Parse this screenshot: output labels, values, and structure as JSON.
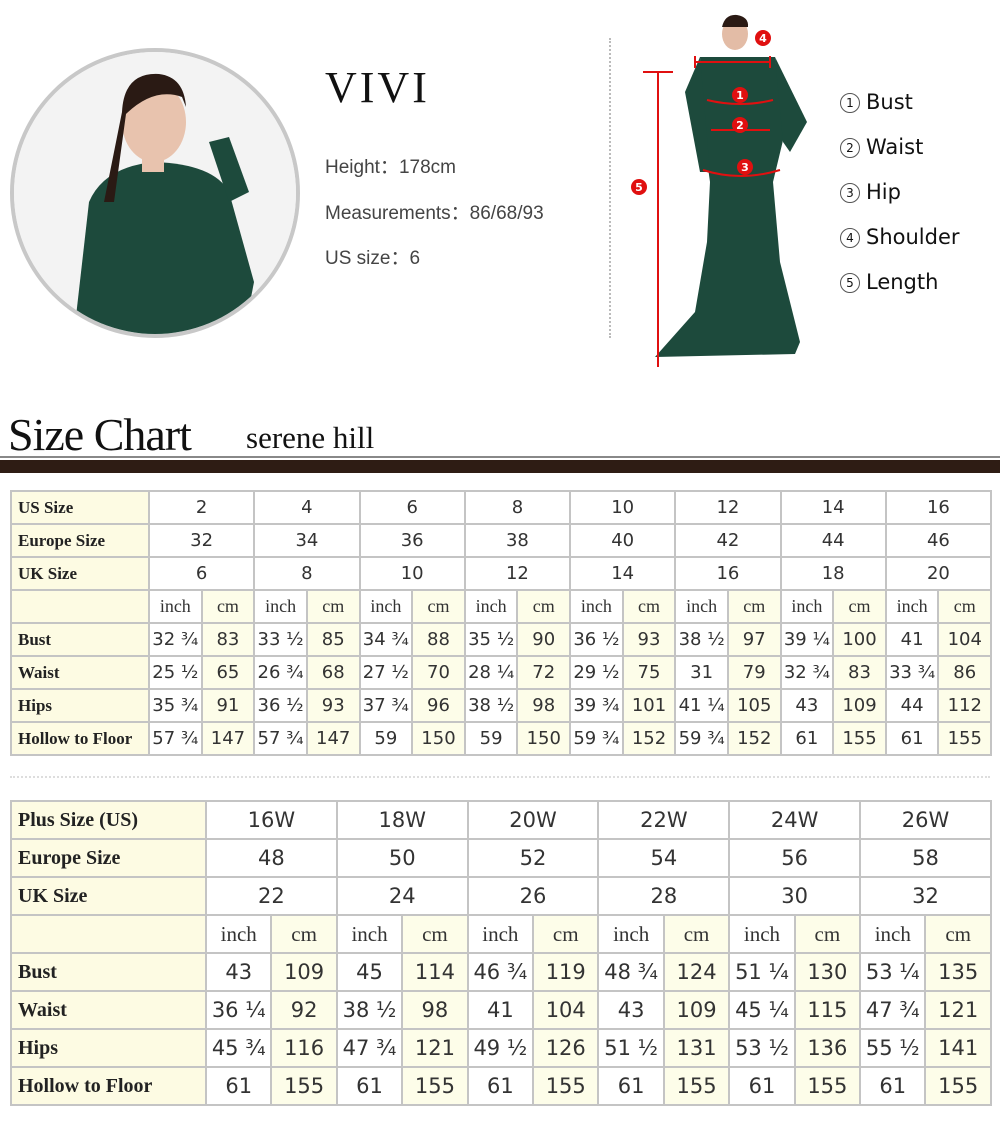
{
  "model": {
    "name": "VIVI",
    "height_label": "Height：",
    "height": "178cm",
    "measurements_label": "Measurements：",
    "measurements": "86/68/93",
    "us_size_label": "US size：",
    "us_size": "6"
  },
  "measure_legend": [
    {
      "num": "1",
      "label": "Bust"
    },
    {
      "num": "2",
      "label": "Waist"
    },
    {
      "num": "3",
      "label": "Hip"
    },
    {
      "num": "4",
      "label": "Shoulder"
    },
    {
      "num": "5",
      "label": "Length"
    }
  ],
  "colors": {
    "marker_red": "#e01010",
    "dress_green": "#1d4a3c",
    "header_bar": "#2e1c14",
    "label_bg": "#fdfbe3"
  },
  "header": {
    "title": "Size Chart",
    "brand": "serene hill"
  },
  "standard_table": {
    "size_rows": [
      {
        "label": "US Size",
        "values": [
          "2",
          "4",
          "6",
          "8",
          "10",
          "12",
          "14",
          "16"
        ]
      },
      {
        "label": "Europe Size",
        "values": [
          "32",
          "34",
          "36",
          "38",
          "40",
          "42",
          "44",
          "46"
        ]
      },
      {
        "label": "UK Size",
        "values": [
          "6",
          "8",
          "10",
          "12",
          "14",
          "16",
          "18",
          "20"
        ]
      }
    ],
    "units": [
      "inch",
      "cm"
    ],
    "measure_rows": [
      {
        "label": "Bust",
        "values": [
          "32 ¾",
          "83",
          "33 ½",
          "85",
          "34 ¾",
          "88",
          "35 ½",
          "90",
          "36 ½",
          "93",
          "38 ½",
          "97",
          "39 ¼",
          "100",
          "41",
          "104"
        ]
      },
      {
        "label": "Waist",
        "values": [
          "25 ½",
          "65",
          "26 ¾",
          "68",
          "27 ½",
          "70",
          "28 ¼",
          "72",
          "29 ½",
          "75",
          "31",
          "79",
          "32 ¾",
          "83",
          "33 ¾",
          "86"
        ]
      },
      {
        "label": "Hips",
        "values": [
          "35 ¾",
          "91",
          "36 ½",
          "93",
          "37 ¾",
          "96",
          "38 ½",
          "98",
          "39 ¾",
          "101",
          "41 ¼",
          "105",
          "43",
          "109",
          "44",
          "112"
        ]
      },
      {
        "label": "Hollow to Floor",
        "values": [
          "57 ¾",
          "147",
          "57 ¾",
          "147",
          "59",
          "150",
          "59",
          "150",
          "59 ¾",
          "152",
          "59 ¾",
          "152",
          "61",
          "155",
          "61",
          "155"
        ]
      }
    ]
  },
  "plus_table": {
    "size_rows": [
      {
        "label": "Plus Size (US)",
        "values": [
          "16W",
          "18W",
          "20W",
          "22W",
          "24W",
          "26W"
        ]
      },
      {
        "label": "Europe Size",
        "values": [
          "48",
          "50",
          "52",
          "54",
          "56",
          "58"
        ]
      },
      {
        "label": "UK Size",
        "values": [
          "22",
          "24",
          "26",
          "28",
          "30",
          "32"
        ]
      }
    ],
    "units": [
      "inch",
      "cm"
    ],
    "measure_rows": [
      {
        "label": "Bust",
        "values": [
          "43",
          "109",
          "45",
          "114",
          "46 ¾",
          "119",
          "48 ¾",
          "124",
          "51 ¼",
          "130",
          "53 ¼",
          "135"
        ]
      },
      {
        "label": "Waist",
        "values": [
          "36 ¼",
          "92",
          "38 ½",
          "98",
          "41",
          "104",
          "43",
          "109",
          "45 ¼",
          "115",
          "47 ¾",
          "121"
        ]
      },
      {
        "label": "Hips",
        "values": [
          "45 ¾",
          "116",
          "47 ¾",
          "121",
          "49 ½",
          "126",
          "51 ½",
          "131",
          "53 ½",
          "136",
          "55 ½",
          "141"
        ]
      },
      {
        "label": "Hollow to Floor",
        "values": [
          "61",
          "155",
          "61",
          "155",
          "61",
          "155",
          "61",
          "155",
          "61",
          "155",
          "61",
          "155"
        ]
      }
    ]
  }
}
